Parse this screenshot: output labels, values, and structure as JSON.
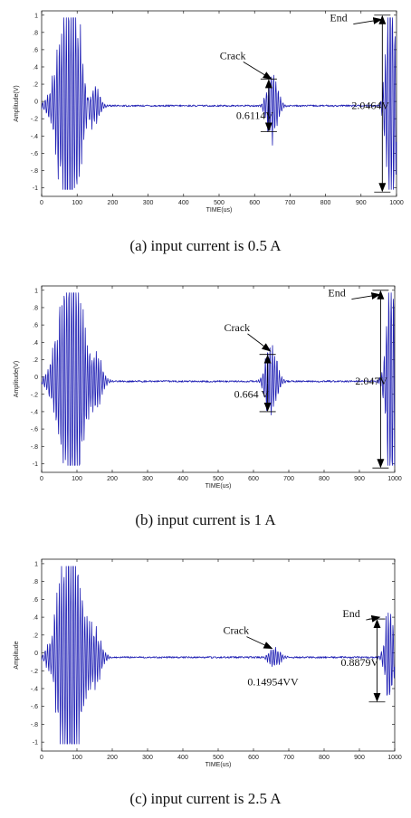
{
  "chart_data": [
    {
      "type": "line",
      "caption": "(a)  input  current  is  0.5  A",
      "xlabel": "TIME(us)",
      "ylabel": "Amplitude(V)",
      "xlim": [
        0,
        1000
      ],
      "ylim": [
        -1.1,
        1.05
      ],
      "xticks": [
        0,
        100,
        200,
        300,
        400,
        500,
        600,
        700,
        800,
        900,
        1000
      ],
      "yticks": [
        1,
        0.8,
        0.6,
        0.4,
        0.2,
        0,
        -0.2,
        -0.4,
        -0.6,
        -0.8,
        -1
      ],
      "series_color": "#1f1fb4",
      "signal": {
        "baseline": -0.05,
        "events": [
          {
            "center": 80,
            "width": 60,
            "amp": 1.05
          },
          {
            "center": 140,
            "width": 35,
            "amp": 0.25
          },
          {
            "center": 650,
            "width": 28,
            "amp": 0.31
          },
          {
            "center": 985,
            "width": 25,
            "amp": 1.02
          }
        ]
      },
      "annotations": [
        {
          "text": "Crack",
          "arrow_to_x": 650,
          "arrow_to_y": 0.26
        },
        {
          "text": "0.6114V",
          "span_x": 640,
          "span_y": [
            0.26,
            -0.35
          ]
        },
        {
          "text": "End",
          "arrow_to_x": 960,
          "arrow_to_y": 0.95
        },
        {
          "text": "2.0464V",
          "span_x": 960,
          "span_y": [
            1.0,
            -1.05
          ]
        }
      ]
    },
    {
      "type": "line",
      "caption": "(b)  input  current  is  1  A",
      "xlabel": "TIME(us)",
      "ylabel": "Amplitude(V)",
      "xlim": [
        0,
        1000
      ],
      "ylim": [
        -1.1,
        1.05
      ],
      "xticks": [
        0,
        100,
        200,
        300,
        400,
        500,
        600,
        700,
        800,
        900,
        1000
      ],
      "yticks": [
        1,
        0.8,
        0.6,
        0.4,
        0.2,
        0,
        -0.2,
        -0.4,
        -0.6,
        -0.8,
        -1
      ],
      "series_color": "#1f1fb4",
      "signal": {
        "baseline": -0.05,
        "events": [
          {
            "center": 85,
            "width": 65,
            "amp": 1.05
          },
          {
            "center": 150,
            "width": 35,
            "amp": 0.28
          },
          {
            "center": 650,
            "width": 30,
            "amp": 0.32
          },
          {
            "center": 990,
            "width": 25,
            "amp": 1.02
          }
        ]
      },
      "annotations": [
        {
          "text": "Crack",
          "arrow_to_x": 650,
          "arrow_to_y": 0.3
        },
        {
          "text": "0.664 V",
          "span_x": 640,
          "span_y": [
            0.26,
            -0.4
          ]
        },
        {
          "text": "End",
          "arrow_to_x": 960,
          "arrow_to_y": 0.95
        },
        {
          "text": "2.047V",
          "span_x": 960,
          "span_y": [
            1.0,
            -1.05
          ]
        }
      ]
    },
    {
      "type": "line",
      "caption": "(c)  input  current  is  2.5  A",
      "xlabel": "TIME(us)",
      "ylabel": "Amplitude",
      "xlim": [
        0,
        1000
      ],
      "ylim": [
        -1.1,
        1.05
      ],
      "xticks": [
        0,
        100,
        200,
        300,
        400,
        500,
        600,
        700,
        800,
        900,
        1000
      ],
      "yticks": [
        1,
        0.8,
        0.6,
        0.4,
        0.2,
        0,
        -0.2,
        -0.4,
        -0.6,
        -0.8,
        -1
      ],
      "series_color": "#1f1fb4",
      "signal": {
        "baseline": -0.05,
        "events": [
          {
            "center": 80,
            "width": 60,
            "amp": 1.05
          },
          {
            "center": 150,
            "width": 35,
            "amp": 0.2
          },
          {
            "center": 660,
            "width": 30,
            "amp": 0.08
          },
          {
            "center": 985,
            "width": 22,
            "amp": 0.42
          }
        ]
      },
      "annotations": [
        {
          "text": "Crack",
          "arrow_to_x": 655,
          "arrow_to_y": 0.05
        },
        {
          "text": "0.14954VV",
          "label_x": 660,
          "label_y": -0.2
        },
        {
          "text": "End",
          "arrow_to_x": 960,
          "arrow_to_y": 0.4
        },
        {
          "text": "0.8879V",
          "span_x": 950,
          "span_y": [
            0.38,
            -0.55
          ]
        }
      ]
    }
  ]
}
